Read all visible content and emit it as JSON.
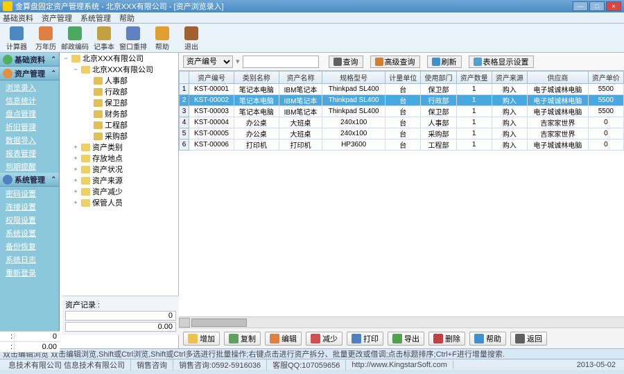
{
  "title": "金算盘固定资产管理系统 - 北京XXX有限公司 - [资产浏览录入]",
  "menus": [
    "基础资料",
    "资产管理",
    "系统管理",
    "帮助"
  ],
  "toolbar": [
    {
      "label": "计算器",
      "color": "#4a8ac4"
    },
    {
      "label": "万年历",
      "color": "#e08040"
    },
    {
      "label": "邮政编码",
      "color": "#4aa860"
    },
    {
      "label": "记事本",
      "color": "#c0a040"
    },
    {
      "label": "窗口重排",
      "color": "#6080c0"
    },
    {
      "label": "帮助",
      "color": "#e0a030"
    },
    {
      "label": "退出",
      "color": "#a06030"
    }
  ],
  "sidebar": {
    "sections": [
      {
        "title": "基础资料",
        "icon": "#50b060",
        "items": []
      },
      {
        "title": "资产管理",
        "icon": "#e09040",
        "items": [
          "浏览录入",
          "信息统计",
          "盘点管理",
          "折旧管理",
          "数据导入",
          "报表管理",
          "到期提醒"
        ]
      },
      {
        "title": "系统管理",
        "icon": "#5080c0",
        "items": [
          "密码设置",
          "连接设置",
          "权限设置",
          "系统设置",
          "备份恢复",
          "系统日志",
          "重新登录"
        ]
      }
    ]
  },
  "tree": {
    "root": "北京XXX有限公司",
    "depts": [
      "人事部",
      "行政部",
      "保卫部",
      "财务部",
      "工程部",
      "采购部"
    ],
    "cats": [
      "资产类别",
      "存放地点",
      "资产状况",
      "资产来源",
      "资产减少",
      "保管人员"
    ]
  },
  "treeBottom": {
    "label": "资产记录 :",
    "v1": "0",
    "v2": "0.00"
  },
  "smallNums": [
    {
      "l": ":",
      "v": "0"
    },
    {
      "l": ":",
      "v": "0.00"
    }
  ],
  "search": {
    "field": "资产编号",
    "btns": [
      {
        "label": "查询",
        "color": "#606060"
      },
      {
        "label": "高级查询",
        "color": "#d08030"
      },
      {
        "label": "刷新",
        "color": "#4090d0"
      },
      {
        "label": "表格显示设置",
        "color": "#50a0d0"
      }
    ]
  },
  "columns": [
    "资产编号",
    "类别名称",
    "资产名称",
    "规格型号",
    "计量单位",
    "使用部门",
    "资产数量",
    "资产来源",
    "供应商",
    "资产单价"
  ],
  "rows": [
    [
      "KST-00001",
      "笔记本电脑",
      "IBM笔记本",
      "Thinkpad SL400",
      "台",
      "保卫部",
      "1",
      "购入",
      "电子城诚林电脑",
      "5500"
    ],
    [
      "KST-00002",
      "笔记本电脑",
      "IBM笔记本",
      "Thinkpad SL400",
      "台",
      "行政部",
      "1",
      "购入",
      "电子城诚林电脑",
      "5500"
    ],
    [
      "KST-00003",
      "笔记本电脑",
      "IBM笔记本",
      "Thinkpad SL400",
      "台",
      "保卫部",
      "1",
      "购入",
      "电子城诚林电脑",
      "5500"
    ],
    [
      "KST-00004",
      "办公桌",
      "大班桌",
      "240x100",
      "台",
      "人事部",
      "1",
      "购入",
      "吉家家世界",
      "0"
    ],
    [
      "KST-00005",
      "办公桌",
      "大班桌",
      "240x100",
      "台",
      "采购部",
      "1",
      "购入",
      "吉家家世界",
      "0"
    ],
    [
      "KST-00006",
      "打印机",
      "打印机",
      "HP3600",
      "台",
      "工程部",
      "1",
      "购入",
      "电子城诚林电脑",
      "0"
    ]
  ],
  "selectedRow": 1,
  "actions": [
    {
      "label": "增加",
      "color": "#f0c050"
    },
    {
      "label": "复制",
      "color": "#60a060"
    },
    {
      "label": "编辑",
      "color": "#e08040"
    },
    {
      "label": "减少",
      "color": "#d05050"
    },
    {
      "label": "打印",
      "color": "#5080c0"
    },
    {
      "label": "导出",
      "color": "#50a050"
    },
    {
      "label": "删除",
      "color": "#c04040"
    },
    {
      "label": "帮助",
      "color": "#4090d0"
    },
    {
      "label": "返回",
      "color": "#606060"
    }
  ],
  "hint": "双击编辑浏览  双击编辑浏览,Shift或Ctrl浏览,Shift或Ctrl多选进行批量操作;右键点击进行资产拆分、批量更改或借调;点击标题排序;Ctrl+F进行增量搜索.",
  "status": {
    "company": "息技术有限公司   信息技术有限公司",
    "sales": "销售咨询",
    "phone": "销售咨询:0592-5916036",
    "qq": "客服QQ:107059656",
    "url": "http://www.KingstarSoft.com",
    "date": "2013-05-02"
  }
}
